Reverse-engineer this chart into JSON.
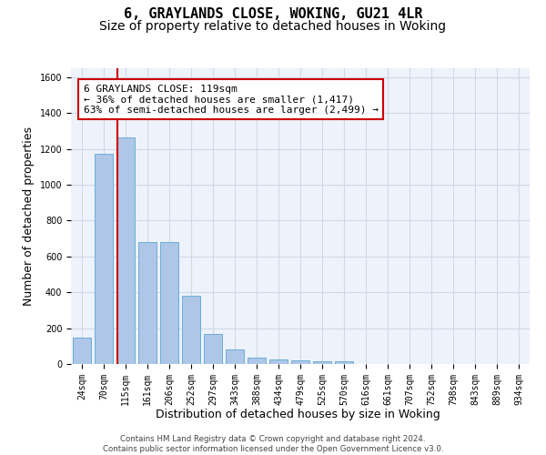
{
  "title1": "6, GRAYLANDS CLOSE, WOKING, GU21 4LR",
  "title2": "Size of property relative to detached houses in Woking",
  "xlabel": "Distribution of detached houses by size in Woking",
  "ylabel": "Number of detached properties",
  "categories": [
    "24sqm",
    "70sqm",
    "115sqm",
    "161sqm",
    "206sqm",
    "252sqm",
    "297sqm",
    "343sqm",
    "388sqm",
    "434sqm",
    "479sqm",
    "525sqm",
    "570sqm",
    "616sqm",
    "661sqm",
    "707sqm",
    "752sqm",
    "798sqm",
    "843sqm",
    "889sqm",
    "934sqm"
  ],
  "values": [
    145,
    1175,
    1265,
    680,
    680,
    380,
    170,
    80,
    35,
    25,
    20,
    15,
    15,
    0,
    0,
    0,
    0,
    0,
    0,
    0,
    0
  ],
  "bar_color": "#aec6e8",
  "bar_edge_color": "#6aaed6",
  "red_line_x": 1.62,
  "annotation_text": "6 GRAYLANDS CLOSE: 119sqm\n← 36% of detached houses are smaller (1,417)\n63% of semi-detached houses are larger (2,499) →",
  "annotation_box_color": "#ffffff",
  "annotation_border_color": "#cc0000",
  "ylim": [
    0,
    1650
  ],
  "yticks": [
    0,
    200,
    400,
    600,
    800,
    1000,
    1200,
    1400,
    1600
  ],
  "grid_color": "#d0d8e8",
  "background_color": "#eef2fa",
  "footer1": "Contains HM Land Registry data © Crown copyright and database right 2024.",
  "footer2": "Contains public sector information licensed under the Open Government Licence v3.0.",
  "title1_fontsize": 11,
  "title2_fontsize": 10,
  "xlabel_fontsize": 9,
  "ylabel_fontsize": 9,
  "tick_fontsize": 7,
  "annotation_fontsize": 8
}
